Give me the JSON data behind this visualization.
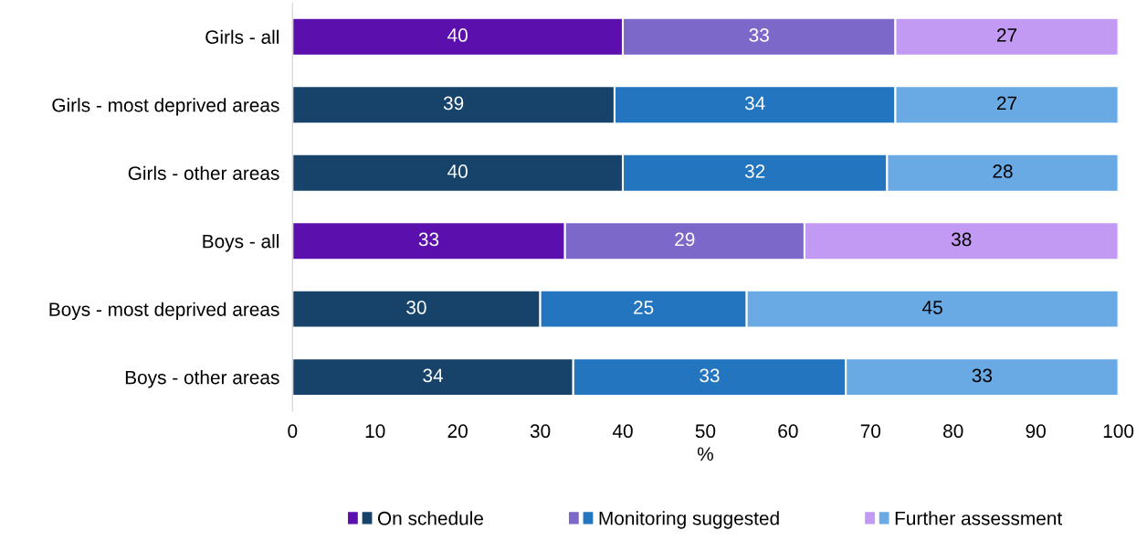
{
  "chart_data": {
    "type": "bar",
    "orientation": "horizontal",
    "stacked": true,
    "xlabel": "%",
    "categories": [
      "Girls - all",
      "Girls - most deprived areas",
      "Girls - other areas",
      "Boys - all",
      "Boys - most deprived areas",
      "Boys - other areas"
    ],
    "series": [
      {
        "name": "On schedule",
        "values": [
          40,
          39,
          40,
          33,
          30,
          34
        ],
        "colors": [
          "#5b0fad",
          "#17436b",
          "#17436b",
          "#5b0fad",
          "#17436b",
          "#17436b"
        ]
      },
      {
        "name": "Monitoring suggested",
        "values": [
          33,
          34,
          32,
          29,
          25,
          33
        ],
        "colors": [
          "#7b68c9",
          "#2375c0",
          "#2375c0",
          "#7b68c9",
          "#2375c0",
          "#2375c0"
        ]
      },
      {
        "name": "Further assessment",
        "values": [
          27,
          27,
          28,
          38,
          45,
          33
        ],
        "colors": [
          "#c39af3",
          "#6aaae4",
          "#6aaae4",
          "#c39af3",
          "#6aaae4",
          "#6aaae4"
        ]
      }
    ],
    "xlim": [
      0,
      100
    ],
    "xticks": [
      0,
      10,
      20,
      30,
      40,
      50,
      60,
      70,
      80,
      90,
      100
    ],
    "data_labels": true,
    "grid": false,
    "legend": "bottom"
  }
}
